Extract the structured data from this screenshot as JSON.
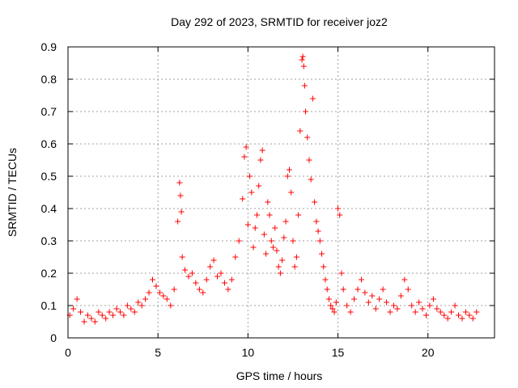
{
  "chart_data": {
    "type": "scatter",
    "title": "Day 292 of 2023, SRMTID for receiver joz2",
    "xlabel": "GPS time / hours",
    "ylabel": "SRMTID / TECUs",
    "xlim": [
      0,
      23.7
    ],
    "ylim": [
      0,
      0.9
    ],
    "xticks": [
      0,
      5,
      10,
      15,
      20
    ],
    "yticks": [
      0,
      0.1,
      0.2,
      0.3,
      0.4,
      0.5,
      0.6,
      0.7,
      0.8,
      0.9
    ],
    "xtick_labels": [
      "0",
      "5",
      "10",
      "15",
      "20"
    ],
    "ytick_labels": [
      "0",
      "0.1",
      "0.2",
      "0.3",
      "0.4",
      "0.5",
      "0.6",
      "0.7",
      "0.8",
      "0.9"
    ],
    "grid": true,
    "marker": "+",
    "color": "#ff0000",
    "series": [
      {
        "name": "SRMTID",
        "x": [
          0.1,
          0.3,
          0.5,
          0.7,
          0.9,
          1.1,
          1.3,
          1.5,
          1.7,
          1.9,
          2.1,
          2.3,
          2.5,
          2.7,
          2.9,
          3.1,
          3.3,
          3.5,
          3.7,
          3.9,
          4.1,
          4.3,
          4.5,
          4.7,
          4.9,
          5.1,
          5.3,
          5.5,
          5.7,
          5.9,
          6.1,
          6.2,
          6.25,
          6.3,
          6.35,
          6.5,
          6.7,
          6.9,
          7.1,
          7.3,
          7.5,
          7.7,
          7.9,
          8.1,
          8.3,
          8.5,
          8.7,
          8.9,
          9.1,
          9.3,
          9.5,
          9.7,
          9.8,
          9.9,
          10.0,
          10.1,
          10.2,
          10.3,
          10.4,
          10.5,
          10.6,
          10.7,
          10.8,
          10.9,
          11.0,
          11.1,
          11.2,
          11.3,
          11.4,
          11.5,
          11.6,
          11.7,
          11.8,
          11.9,
          12.0,
          12.1,
          12.2,
          12.3,
          12.4,
          12.5,
          12.6,
          12.7,
          12.8,
          12.9,
          13.0,
          13.05,
          13.1,
          13.15,
          13.2,
          13.3,
          13.4,
          13.5,
          13.6,
          13.7,
          13.8,
          13.9,
          14.0,
          14.1,
          14.2,
          14.3,
          14.4,
          14.5,
          14.6,
          14.7,
          14.8,
          14.9,
          15.0,
          15.1,
          15.2,
          15.3,
          15.5,
          15.7,
          15.9,
          16.1,
          16.3,
          16.5,
          16.7,
          16.9,
          17.1,
          17.3,
          17.5,
          17.7,
          17.9,
          18.1,
          18.3,
          18.5,
          18.7,
          18.9,
          19.1,
          19.3,
          19.5,
          19.7,
          19.9,
          20.1,
          20.3,
          20.5,
          20.7,
          20.9,
          21.1,
          21.3,
          21.5,
          21.7,
          21.9,
          22.1,
          22.3,
          22.5,
          22.7
        ],
        "y": [
          0.07,
          0.09,
          0.12,
          0.08,
          0.05,
          0.07,
          0.06,
          0.05,
          0.08,
          0.07,
          0.06,
          0.08,
          0.07,
          0.09,
          0.08,
          0.07,
          0.1,
          0.09,
          0.08,
          0.11,
          0.1,
          0.12,
          0.14,
          0.18,
          0.16,
          0.14,
          0.13,
          0.12,
          0.1,
          0.15,
          0.36,
          0.48,
          0.44,
          0.39,
          0.25,
          0.21,
          0.19,
          0.2,
          0.17,
          0.15,
          0.14,
          0.18,
          0.22,
          0.24,
          0.19,
          0.2,
          0.17,
          0.15,
          0.18,
          0.25,
          0.3,
          0.43,
          0.56,
          0.59,
          0.35,
          0.5,
          0.45,
          0.28,
          0.34,
          0.38,
          0.47,
          0.55,
          0.58,
          0.32,
          0.26,
          0.42,
          0.38,
          0.3,
          0.28,
          0.34,
          0.27,
          0.22,
          0.2,
          0.24,
          0.31,
          0.36,
          0.5,
          0.52,
          0.45,
          0.3,
          0.22,
          0.25,
          0.38,
          0.64,
          0.86,
          0.87,
          0.84,
          0.78,
          0.7,
          0.62,
          0.55,
          0.49,
          0.74,
          0.42,
          0.36,
          0.33,
          0.3,
          0.26,
          0.22,
          0.18,
          0.15,
          0.12,
          0.1,
          0.09,
          0.08,
          0.11,
          0.4,
          0.38,
          0.2,
          0.15,
          0.1,
          0.08,
          0.12,
          0.15,
          0.18,
          0.14,
          0.11,
          0.13,
          0.09,
          0.12,
          0.15,
          0.11,
          0.08,
          0.1,
          0.09,
          0.13,
          0.18,
          0.15,
          0.1,
          0.08,
          0.11,
          0.09,
          0.07,
          0.1,
          0.12,
          0.09,
          0.08,
          0.07,
          0.06,
          0.08,
          0.1,
          0.07,
          0.06,
          0.08,
          0.07,
          0.06,
          0.08
        ]
      }
    ]
  }
}
